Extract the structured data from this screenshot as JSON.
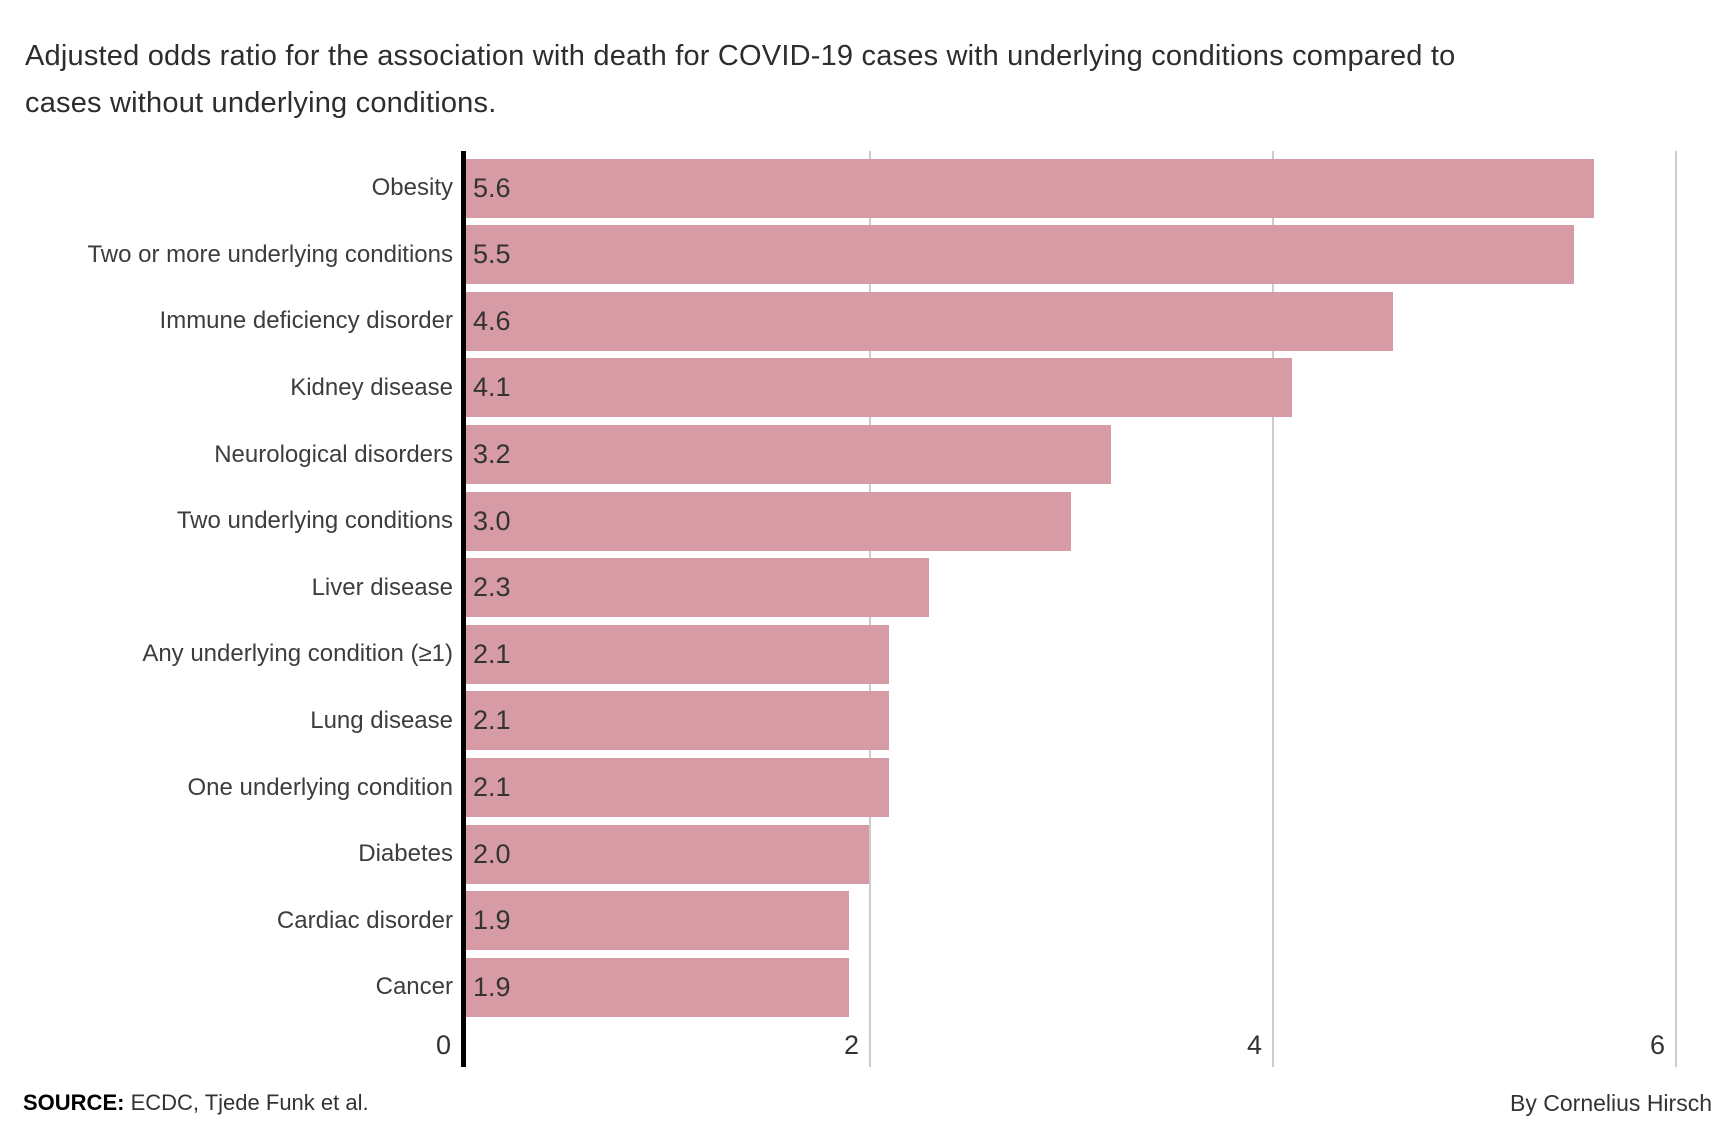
{
  "header": {
    "title_line1": "Adjusted odds ratio for the association with death for COVID-19 cases with underlying conditions compared to",
    "title_line2": "cases without underlying conditions."
  },
  "chart_data": {
    "type": "bar",
    "orientation": "horizontal",
    "title": "Adjusted odds ratio for the association with death for COVID-19 cases with underlying conditions compared to cases without underlying conditions.",
    "categories": [
      "Obesity",
      "Two or more underlying conditions",
      "Immune deficiency disorder",
      "Kidney disease",
      "Neurological disorders",
      "Two underlying conditions",
      "Liver disease",
      "Any underlying condition (≥1)",
      "Lung disease",
      "One underlying condition",
      "Diabetes",
      "Cardiac disorder",
      "Cancer"
    ],
    "values": [
      5.6,
      5.5,
      4.6,
      4.1,
      3.2,
      3.0,
      2.3,
      2.1,
      2.1,
      2.1,
      2.0,
      1.9,
      1.9
    ],
    "xlabel": "",
    "ylabel": "",
    "xlim": [
      0,
      6
    ],
    "xticks": [
      0,
      2,
      4,
      6
    ],
    "grid": "vertical-gridlines-at-2-4-6",
    "legend": "none",
    "bar_color": "#d69ba5",
    "axis_color": "#000000",
    "gridline_color": "#cccccc"
  },
  "footer": {
    "source_label": "SOURCE:",
    "source_text": " ECDC, Tjede Funk et al.",
    "byline": "By Cornelius Hirsch"
  }
}
